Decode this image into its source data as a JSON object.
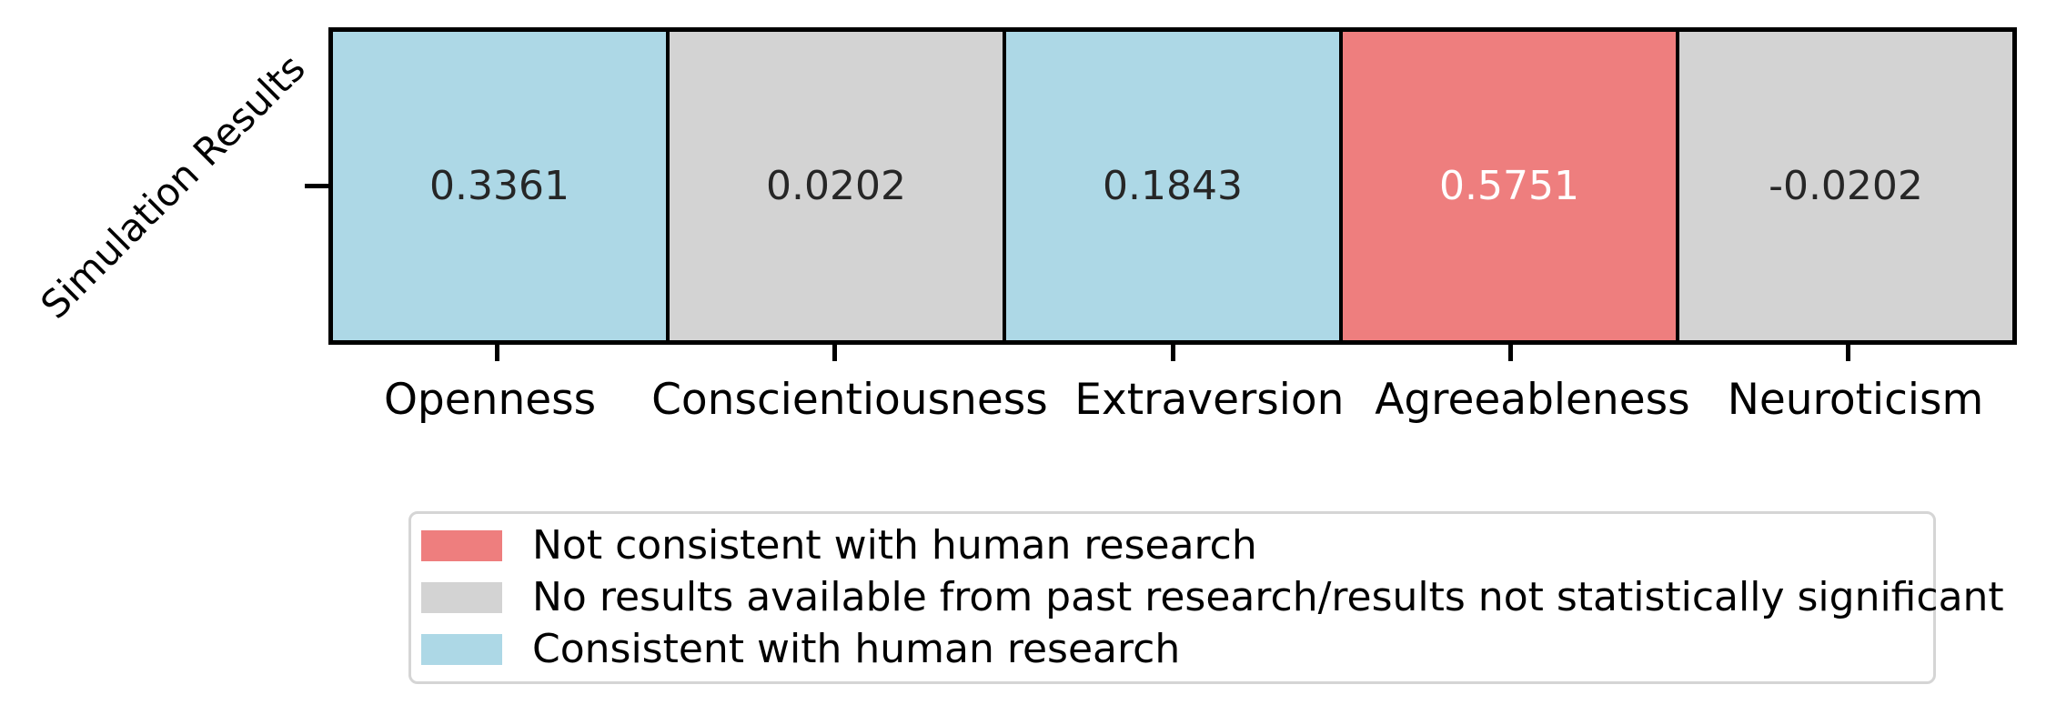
{
  "colors": {
    "consistent": "#ADD8E6",
    "no_results": "#D3D3D3",
    "not_consistent": "#EE7E7E",
    "grid_line": "#000000",
    "annot_dark": "#262626",
    "annot_light": "#FFFFFF",
    "legend_border": "#D5D5D5",
    "background": "#FFFFFF"
  },
  "y_axis": {
    "tick_label": "Simulation Results"
  },
  "x_axis": {
    "tick_labels": [
      "Openness",
      "Conscientiousness",
      "Extraversion",
      "Agreeableness",
      "Neuroticism"
    ]
  },
  "cells": [
    {
      "value": "0.3361",
      "column": "Openness",
      "status": "consistent",
      "color": "#ADD8E6",
      "text_color": "#262626"
    },
    {
      "value": "0.0202",
      "column": "Conscientiousness",
      "status": "no_results",
      "color": "#D3D3D3",
      "text_color": "#262626"
    },
    {
      "value": "0.1843",
      "column": "Extraversion",
      "status": "consistent",
      "color": "#ADD8E6",
      "text_color": "#262626"
    },
    {
      "value": "0.5751",
      "column": "Agreeableness",
      "status": "not_consistent",
      "color": "#EE7E7E",
      "text_color": "#FFFFFF"
    },
    {
      "value": "-0.0202",
      "column": "Neuroticism",
      "status": "no_results",
      "color": "#D3D3D3",
      "text_color": "#262626"
    }
  ],
  "legend": {
    "items": [
      {
        "label": "Not consistent with human research",
        "color": "#EE7E7E",
        "status": "not_consistent"
      },
      {
        "label": "No results available from past research/results not statistically significant",
        "color": "#D3D3D3",
        "status": "no_results"
      },
      {
        "label": "Consistent with human research",
        "color": "#ADD8E6",
        "status": "consistent"
      }
    ]
  },
  "chart_data": {
    "type": "heatmap",
    "title": "",
    "rows": [
      "Simulation Results"
    ],
    "columns": [
      "Openness",
      "Conscientiousness",
      "Extraversion",
      "Agreeableness",
      "Neuroticism"
    ],
    "values": [
      [
        0.3361,
        0.0202,
        0.1843,
        0.5751,
        -0.0202
      ]
    ],
    "cell_categories": [
      [
        "consistent",
        "no_results",
        "consistent",
        "not_consistent",
        "no_results"
      ]
    ],
    "category_colors": {
      "consistent": "#ADD8E6",
      "no_results": "#D3D3D3",
      "not_consistent": "#EE7E7E"
    },
    "annotations_shown": true,
    "grid": true,
    "grid_color": "#000000",
    "legend_position": "bottom",
    "legend_entries": [
      "Not consistent with human research",
      "No results available from past research/results not statistically significant",
      "Consistent with human research"
    ]
  }
}
